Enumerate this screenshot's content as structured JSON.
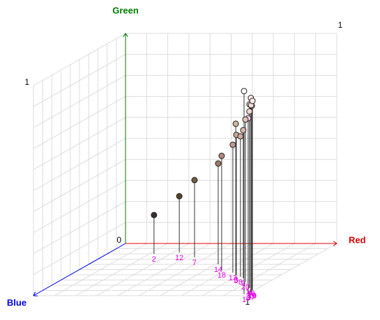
{
  "chart_data": {
    "type": "scatter3d",
    "x_label": "Red",
    "y_label": "Green",
    "z_label": "Blue",
    "x_color": "#e00000",
    "y_color": "#007a00",
    "z_color": "#0000e0",
    "xlim": [
      0,
      1
    ],
    "ylim": [
      0,
      1
    ],
    "zlim": [
      0,
      1
    ],
    "xticks": [
      1
    ],
    "yticks": [
      0,
      1
    ],
    "zticks": [
      1
    ],
    "grid": true,
    "points": [
      {
        "label": "1",
        "x": 0.985,
        "y": 0.967,
        "z": 0.973
      },
      {
        "label": "2",
        "x": 0.222,
        "y": 0.185,
        "z": 0.2
      },
      {
        "label": "3",
        "x": 0.786,
        "y": 0.666,
        "z": 0.6
      },
      {
        "label": "4",
        "x": 0.959,
        "y": 0.874,
        "z": 0.853
      },
      {
        "label": "5",
        "x": 0.789,
        "y": 0.722,
        "z": 0.613
      },
      {
        "label": "6",
        "x": 0.993,
        "y": 0.831,
        "z": 0.947
      },
      {
        "label": "7",
        "x": 0.443,
        "y": 0.368,
        "z": 0.267
      },
      {
        "label": "8",
        "x": 0.823,
        "y": 0.669,
        "z": 0.64
      },
      {
        "label": "9",
        "x": 0.848,
        "y": 0.705,
        "z": 0.667
      },
      {
        "label": "10",
        "x": 0.987,
        "y": 0.877,
        "z": 0.893
      },
      {
        "label": "11",
        "x": 0.947,
        "y": 0.834,
        "z": 0.827
      },
      {
        "label": "12",
        "x": 0.33,
        "y": 0.268,
        "z": 0.173
      },
      {
        "label": "13",
        "x": 0.752,
        "y": 0.609,
        "z": 0.56
      },
      {
        "label": "14",
        "x": 0.613,
        "y": 0.48,
        "z": 0.4
      },
      {
        "label": "16",
        "x": 0.972,
        "y": 0.874,
        "z": 0.867
      },
      {
        "label": "17",
        "x": 1.0,
        "y": 0.924,
        "z": 0.933
      },
      {
        "label": "18",
        "x": 0.676,
        "y": 0.543,
        "z": 0.507
      },
      {
        "label": "19",
        "x": 0.996,
        "y": 0.904,
        "z": 0.907
      },
      {
        "label": "20",
        "x": 0.887,
        "y": 0.772,
        "z": 0.733
      }
    ]
  }
}
